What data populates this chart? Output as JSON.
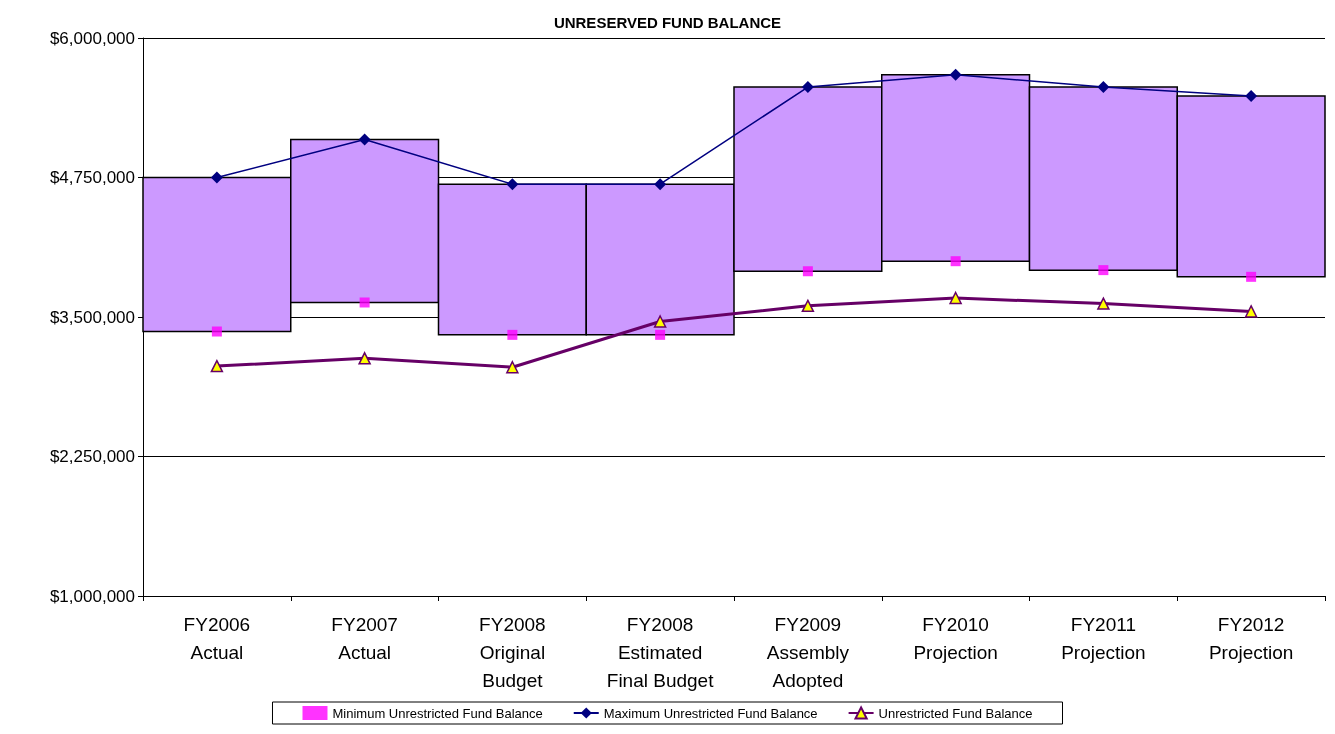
{
  "chart_data": {
    "type": "bar",
    "title": "UNRESERVED FUND BALANCE",
    "categories": [
      "FY2006\nActual",
      "FY2007\nActual",
      "FY2008\nOriginal\nBudget",
      "FY2008\nEstimated\nFinal Budget",
      "FY2009\nAssembly\nAdopted",
      "FY2010\nProjection",
      "FY2011\nProjection",
      "FY2012\nProjection"
    ],
    "series": [
      {
        "color": "#cc99ff",
        "base": [
          3370000,
          3630000,
          3340000,
          3340000,
          3910000,
          4000000,
          3920000,
          3860000
        ],
        "values": [
          1380000,
          1460000,
          1350000,
          1350000,
          1650000,
          1670000,
          1640000,
          1620000
        ]
      },
      {
        "type": "scatter",
        "name": "Minimum Unrestricted Fund Balance",
        "color": "#ff00ff",
        "marker": "square",
        "values": [
          3370000,
          3630000,
          3340000,
          3340000,
          3910000,
          4000000,
          3920000,
          3860000
        ]
      },
      {
        "type": "line",
        "name": "Maximum Unrestricted Fund Balance",
        "color": "#000080",
        "marker": "diamond",
        "line_style": "solid",
        "values": [
          4750000,
          5090000,
          4690000,
          4690000,
          5560000,
          5670000,
          5560000,
          5480000
        ]
      },
      {
        "type": "line",
        "name": "Unrestricted Fund Balance",
        "color": "#660066",
        "marker": "triangle",
        "line_style": "solid",
        "values": [
          3060000,
          3130000,
          3050000,
          3460000,
          3600000,
          3670000,
          3620000,
          3550000
        ]
      }
    ],
    "ylim": [
      1000000,
      6000000
    ],
    "yticks": [
      {
        "value": 1000000,
        "label": "$1,000,000"
      },
      {
        "value": 2250000,
        "label": "$2,250,000"
      },
      {
        "value": 3500000,
        "label": "$3,500,000"
      },
      {
        "value": 4750000,
        "label": "$4,750,000"
      },
      {
        "value": 6000000,
        "label": "$6,000,000"
      }
    ],
    "grid": "y",
    "legend": "bottom"
  }
}
